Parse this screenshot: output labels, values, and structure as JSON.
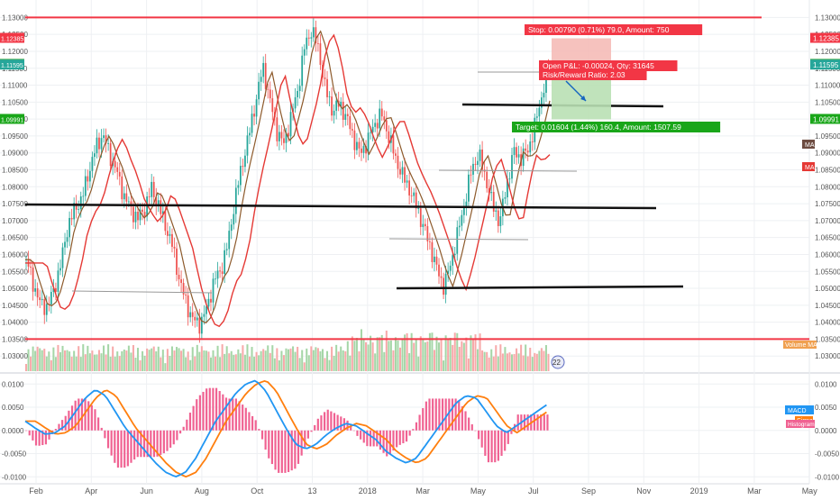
{
  "chart_data": {
    "type": "candlestick",
    "panes": [
      {
        "name": "price",
        "ylim": [
          1.025,
          1.1325
        ],
        "y_ticks": [
          "1.13000",
          "1.12500",
          "1.12000",
          "1.11500",
          "1.11000",
          "1.10500",
          "1.10000",
          "1.09500",
          "1.09000",
          "1.08500",
          "1.08000",
          "1.07500",
          "1.07000",
          "1.06500",
          "1.06000",
          "1.05500",
          "1.05000",
          "1.04500",
          "1.04000",
          "1.03500",
          "1.03000"
        ],
        "price_tags": [
          {
            "label": "1.12385",
            "value": 1.12385,
            "color": "#f23645"
          },
          {
            "label": "1.11619",
            "value": 1.11619,
            "color": "#4caf50"
          },
          {
            "label": "1.11595",
            "value": 1.11595,
            "color": "#26a69a"
          },
          {
            "label": "1.09991",
            "value": 1.09991,
            "color": "#19a619"
          }
        ],
        "horizontal_lines": [
          {
            "value": 1.13,
            "color": "#f23645"
          },
          {
            "value": 1.035,
            "color": "#f23645"
          }
        ],
        "close_series": [
          1.0585,
          1.0515,
          1.0455,
          1.0445,
          1.0495,
          1.0575,
          1.0685,
          1.0735,
          1.0765,
          1.0845,
          1.0915,
          1.0955,
          1.0895,
          1.0845,
          1.0775,
          1.0735,
          1.0705,
          1.0735,
          1.0795,
          1.0745,
          1.0685,
          1.0625,
          1.0525,
          1.0455,
          1.0405,
          1.0395,
          1.0445,
          1.0525,
          1.0555,
          1.0635,
          1.0765,
          1.0865,
          1.0955,
          1.1055,
          1.1155,
          1.1055,
          1.0965,
          1.0925,
          1.1005,
          1.1085,
          1.1215,
          1.1265,
          1.1205,
          1.1085,
          1.1025,
          1.1045,
          1.1005,
          1.0945,
          1.0895,
          1.0935,
          1.0985,
          1.1015,
          1.0955,
          1.0885,
          1.0835,
          1.0795,
          1.0745,
          1.0685,
          1.0625,
          1.0555,
          1.0505,
          1.0575,
          1.0665,
          1.0755,
          1.0855,
          1.0895,
          1.0825,
          1.0745,
          1.0695,
          1.0805,
          1.0905,
          1.0885,
          1.0905,
          1.0975,
          1.1065,
          1.1155
        ],
        "open_pnl": "Open P&L: -0.00024, Qty: 31645",
        "risk_reward": "Risk/Reward Ratio: 2.03",
        "stop_label": "Stop: 0.00790 (0.71%) 79.0, Amount: 750",
        "target_label": "Target: 0.01604 (1.44%) 160.4, Amount: 1507.59",
        "legend": [
          "MA",
          "MA",
          "Volume MA"
        ]
      },
      {
        "name": "MACD",
        "ylim": [
          -0.0115,
          0.012
        ],
        "y_ticks": [
          "0.0100",
          "0.0050",
          "0.0000",
          "-0.0050",
          "-0.0100"
        ],
        "macd_series": [
          0.002,
          0.0005,
          -0.0008,
          -0.0005,
          0.001,
          0.004,
          0.007,
          0.0088,
          0.0075,
          0.004,
          0.0005,
          -0.002,
          -0.0045,
          -0.007,
          -0.009,
          -0.01,
          -0.009,
          -0.006,
          -0.002,
          0.002,
          0.005,
          0.008,
          0.01,
          0.0108,
          0.0085,
          0.0045,
          0.0005,
          -0.003,
          -0.004,
          -0.003,
          -0.001,
          0.0005,
          0.0015,
          0.001,
          -0.0005,
          -0.002,
          -0.0045,
          -0.006,
          -0.007,
          -0.006,
          -0.003,
          0.0,
          0.003,
          0.006,
          0.0075,
          0.007,
          0.004,
          0.001,
          -0.0005,
          0.001,
          0.0025,
          0.004,
          0.0055
        ],
        "legend": [
          "MACD",
          "Signal",
          "Histogram"
        ]
      }
    ],
    "x_ticks": [
      "Feb",
      "Apr",
      "Jun",
      "Aug",
      "Oct",
      "13",
      "2018",
      "Mar",
      "May",
      "Jul",
      "Sep",
      "Nov",
      "2019",
      "Mar",
      "May"
    ],
    "grid": true
  },
  "ui": {
    "volume_value": "22"
  }
}
